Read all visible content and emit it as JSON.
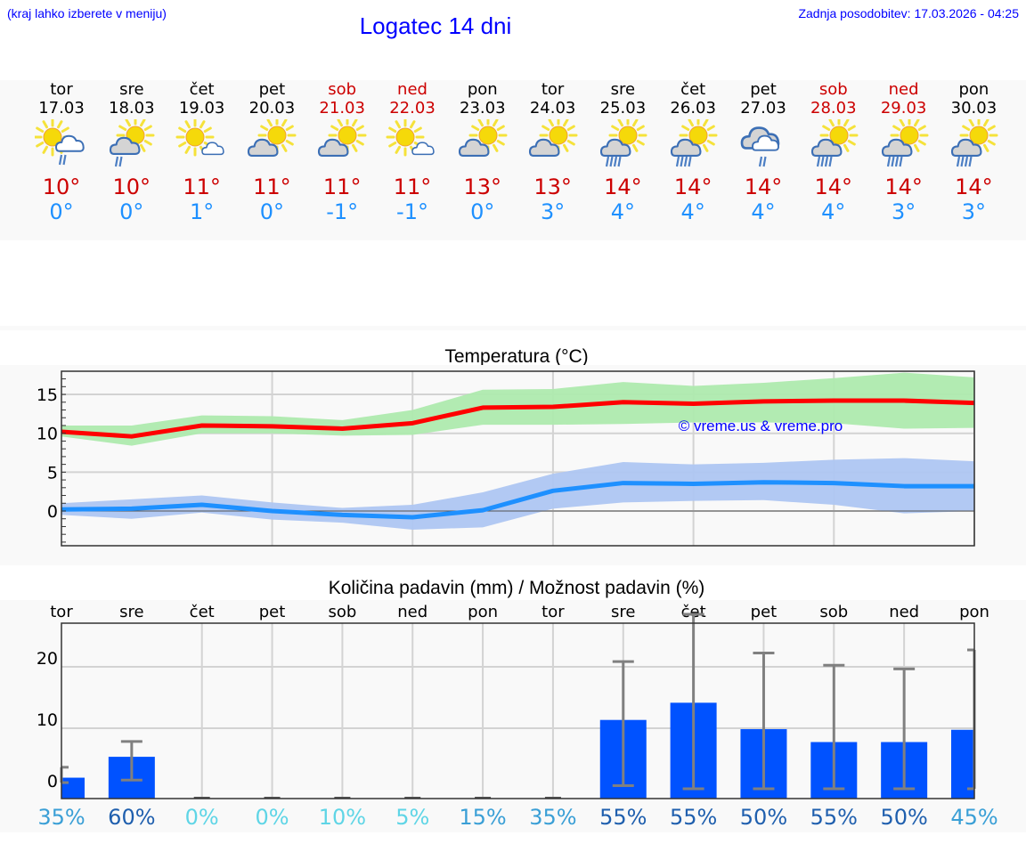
{
  "header": {
    "left_note": "(kraj lahko izberete v meniju)",
    "title": "Logatec 14 dni",
    "updated": "Zadnja posodobitev: 17.03.2026 - 04:25"
  },
  "colors": {
    "link_blue": "#0000ff",
    "tmax": "#cc0000",
    "tmin": "#1e90ff",
    "weekend": "#cc0000",
    "max_line": "#ff0000",
    "max_band": "#aeeaae",
    "min_line": "#1e90ff",
    "min_band": "#aec6f2",
    "precip_bar": "#0052ff",
    "error_bar": "#808080"
  },
  "days": [
    {
      "name": "tor",
      "date": "17.03",
      "weekend": false,
      "icon": "sun-cloud-light-rain-icon",
      "tmax": "10°",
      "tmin": "0°"
    },
    {
      "name": "sre",
      "date": "18.03",
      "weekend": false,
      "icon": "sun-grey-cloud-light-rain-icon",
      "tmax": "10°",
      "tmin": "0°"
    },
    {
      "name": "čet",
      "date": "19.03",
      "weekend": false,
      "icon": "sun-small-cloud-icon",
      "tmax": "11°",
      "tmin": "1°"
    },
    {
      "name": "pet",
      "date": "20.03",
      "weekend": false,
      "icon": "partly-cloudy-icon",
      "tmax": "11°",
      "tmin": "0°"
    },
    {
      "name": "sob",
      "date": "21.03",
      "weekend": true,
      "icon": "partly-cloudy-icon",
      "tmax": "11°",
      "tmin": "-1°"
    },
    {
      "name": "ned",
      "date": "22.03",
      "weekend": true,
      "icon": "sun-small-cloud-icon",
      "tmax": "11°",
      "tmin": "-1°"
    },
    {
      "name": "pon",
      "date": "23.03",
      "weekend": false,
      "icon": "partly-cloudy-icon",
      "tmax": "13°",
      "tmin": "0°"
    },
    {
      "name": "tor",
      "date": "24.03",
      "weekend": false,
      "icon": "partly-cloudy-icon",
      "tmax": "13°",
      "tmin": "3°"
    },
    {
      "name": "sre",
      "date": "25.03",
      "weekend": false,
      "icon": "sun-cloud-rain-icon",
      "tmax": "14°",
      "tmin": "4°"
    },
    {
      "name": "čet",
      "date": "26.03",
      "weekend": false,
      "icon": "sun-cloud-rain-icon",
      "tmax": "14°",
      "tmin": "4°"
    },
    {
      "name": "pet",
      "date": "27.03",
      "weekend": false,
      "icon": "cloudy-light-rain-icon",
      "tmax": "14°",
      "tmin": "4°"
    },
    {
      "name": "sob",
      "date": "28.03",
      "weekend": true,
      "icon": "sun-cloud-rain-icon",
      "tmax": "14°",
      "tmin": "4°"
    },
    {
      "name": "ned",
      "date": "29.03",
      "weekend": true,
      "icon": "sun-cloud-rain-icon",
      "tmax": "14°",
      "tmin": "3°"
    },
    {
      "name": "pon",
      "date": "30.03",
      "weekend": false,
      "icon": "sun-cloud-rain-icon",
      "tmax": "14°",
      "tmin": "3°"
    }
  ],
  "temperature_chart": {
    "title": "Temperatura (°C)",
    "watermark": "© vreme.us & vreme.pro"
  },
  "precip_chart": {
    "title": "Količina padavin (mm) / Možnost padavin (%)"
  },
  "chart_data": [
    {
      "type": "line",
      "title": "Temperatura (°C)",
      "xlabel": "",
      "ylabel": "°C",
      "ylim": [
        -4.5,
        18
      ],
      "yticks": [
        0,
        5,
        10,
        15
      ],
      "grid": true,
      "x": [
        "17.03",
        "18.03",
        "19.03",
        "20.03",
        "21.03",
        "22.03",
        "23.03",
        "24.03",
        "25.03",
        "26.03",
        "27.03",
        "28.03",
        "29.03",
        "30.03"
      ],
      "series": [
        {
          "name": "max",
          "values": [
            10.2,
            9.6,
            11.0,
            10.9,
            10.6,
            11.3,
            13.3,
            13.4,
            14.0,
            13.8,
            14.1,
            14.2,
            14.2,
            13.9
          ]
        },
        {
          "name": "max_band_upper",
          "values": [
            11.0,
            11.0,
            12.3,
            12.2,
            11.7,
            13.0,
            15.6,
            15.7,
            16.6,
            16.1,
            16.5,
            17.1,
            17.8,
            17.2
          ]
        },
        {
          "name": "max_band_lower",
          "values": [
            9.6,
            8.4,
            10.0,
            10.0,
            9.7,
            9.8,
            11.1,
            11.1,
            11.2,
            11.4,
            11.4,
            11.3,
            10.6,
            10.7
          ]
        },
        {
          "name": "min",
          "values": [
            0.2,
            0.3,
            0.8,
            0.0,
            -0.5,
            -0.8,
            0.1,
            2.6,
            3.6,
            3.5,
            3.7,
            3.6,
            3.2,
            3.2
          ]
        },
        {
          "name": "min_band_upper",
          "values": [
            1.0,
            1.5,
            2.0,
            1.1,
            0.4,
            0.8,
            2.4,
            4.8,
            6.3,
            6.0,
            6.2,
            6.6,
            6.8,
            6.4
          ]
        },
        {
          "name": "min_band_lower",
          "values": [
            -0.5,
            -1.0,
            -0.2,
            -1.1,
            -1.5,
            -2.4,
            -2.1,
            0.3,
            1.1,
            1.3,
            1.4,
            0.8,
            -0.3,
            0.0
          ]
        }
      ],
      "legend": []
    },
    {
      "type": "bar",
      "title": "Količina padavin (mm) / Možnost padavin (%)",
      "xlabel": "",
      "ylabel": "mm",
      "ylim": [
        -1.5,
        27
      ],
      "yticks": [
        0,
        10,
        20
      ],
      "grid": true,
      "categories": [
        "tor",
        "sre",
        "čet",
        "pet",
        "sob",
        "ned",
        "pon",
        "tor",
        "sre",
        "čet",
        "pet",
        "sob",
        "ned",
        "pon"
      ],
      "series": [
        {
          "name": "precip_mm",
          "values": [
            0.5,
            3.9,
            0,
            0,
            0,
            0,
            0,
            0,
            9.9,
            12.7,
            8.4,
            6.3,
            6.3,
            8.3
          ]
        },
        {
          "name": "error_low",
          "values": [
            -0.3,
            0.1,
            0,
            0,
            0,
            0,
            0,
            0,
            -0.8,
            -1.3,
            -1.3,
            -1.3,
            -1.3,
            -1.3
          ]
        },
        {
          "name": "error_high",
          "values": [
            2.2,
            6.4,
            0,
            0,
            0,
            0,
            0,
            0,
            19.4,
            27.1,
            20.8,
            18.8,
            18.2,
            21.3
          ]
        }
      ],
      "probability": [
        "35%",
        "60%",
        "0%",
        "0%",
        "10%",
        "5%",
        "15%",
        "35%",
        "55%",
        "55%",
        "50%",
        "55%",
        "50%",
        "45%"
      ],
      "probability_colors": [
        "#3a9fd6",
        "#1f5fae",
        "#5fd5e6",
        "#5fd5e6",
        "#5fd5e6",
        "#5fd5e6",
        "#3a9fd6",
        "#3a9fd6",
        "#1f5fae",
        "#1f5fae",
        "#1f5fae",
        "#1f5fae",
        "#1f5fae",
        "#3a9fd6"
      ]
    }
  ]
}
